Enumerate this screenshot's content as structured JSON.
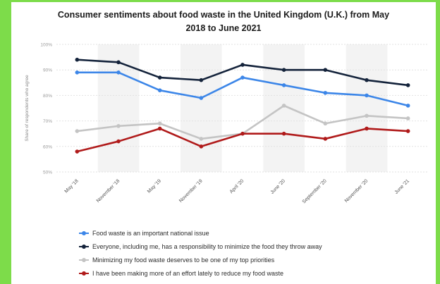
{
  "chart_data": {
    "type": "line",
    "title": "Consumer sentiments about food waste in the United Kingdom (U.K.) from May 2018 to June 2021",
    "title_lines": [
      "Consumer sentiments about food waste in the United Kingdom (U.K.) from May",
      "2018 to June 2021"
    ],
    "ylabel": "Share of respondents who agree",
    "xlabel": "",
    "categories": [
      "May '18",
      "November '18",
      "May '19",
      "November '19",
      "April '20",
      "June '20",
      "September '20",
      "November '20",
      "June '21"
    ],
    "yticks": [
      "50%",
      "60%",
      "70%",
      "80%",
      "90%",
      "100%"
    ],
    "ylim": [
      50,
      100
    ],
    "grid": true,
    "legend_position": "bottom",
    "series": [
      {
        "name": "Food waste is an important national issue",
        "color": "#3c86e8",
        "values": [
          89,
          89,
          82,
          79,
          87,
          84,
          81,
          80,
          76
        ]
      },
      {
        "name": "Everyone, including me, has a responsibility to minimize the food they throw away",
        "color": "#14233b",
        "values": [
          94,
          93,
          87,
          86,
          92,
          90,
          90,
          86,
          84
        ]
      },
      {
        "name": "Minimizing my food waste deserves to be one of my top priorities",
        "color": "#c4c4c4",
        "values": [
          66,
          68,
          69,
          63,
          65,
          76,
          69,
          72,
          71
        ]
      },
      {
        "name": "I have been making more of an effort lately to reduce my food waste",
        "color": "#b01a1a",
        "values": [
          58,
          62,
          67,
          60,
          65,
          65,
          63,
          67,
          66
        ]
      }
    ]
  }
}
